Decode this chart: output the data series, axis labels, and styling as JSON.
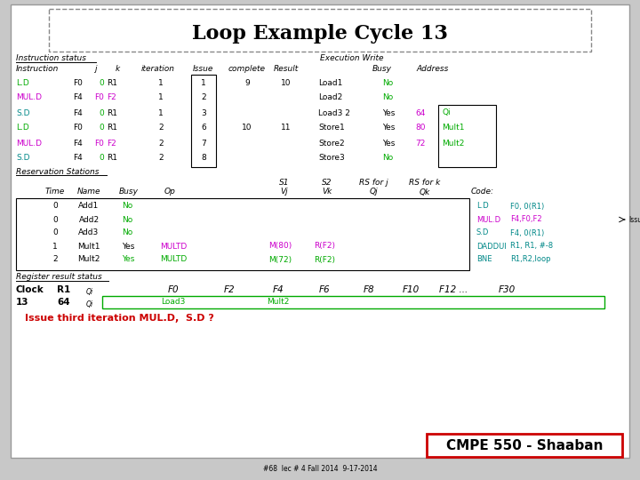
{
  "title": "Loop Example Cycle 13",
  "slide_bg": "#c8c8c8",
  "colors": {
    "green": "#00aa00",
    "magenta": "#cc00cc",
    "cyan": "#008888",
    "red": "#cc0000",
    "black": "#000000",
    "darkgreen": "#006600"
  },
  "footer": "#68  lec # 4 Fall 2014  9-17-2014",
  "cmpe_text": "CMPE 550 - Shaaban",
  "question": "Issue third iteration MUL.D,  S.D ?"
}
